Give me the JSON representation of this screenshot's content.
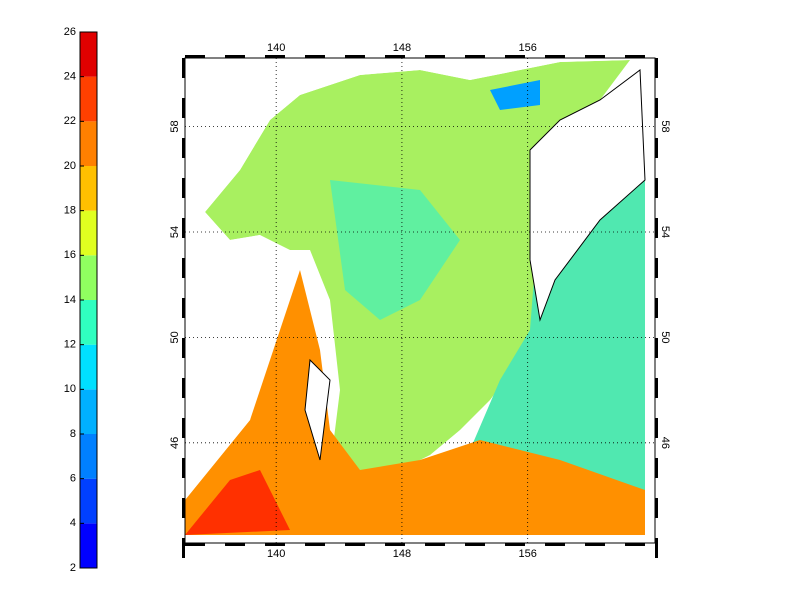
{
  "colorbar": {
    "lim": [
      2,
      26
    ],
    "ticks": [
      2,
      4,
      6,
      8,
      10,
      12,
      14,
      16,
      18,
      20,
      22,
      24,
      26
    ],
    "colors": [
      "#0000ff",
      "#0040ff",
      "#0080ff",
      "#00b0ff",
      "#00e0ff",
      "#30ffc0",
      "#90ff60",
      "#e0ff20",
      "#ffc000",
      "#ff8000",
      "#ff4000",
      "#e00000",
      "#900000"
    ]
  },
  "map": {
    "xlim": [
      134.2,
      164.1
    ],
    "ylim": [
      42.2,
      60.6
    ],
    "xticks": [
      140,
      148,
      156
    ],
    "yticks": [
      46,
      50,
      54,
      58
    ],
    "grid": true
  }
}
